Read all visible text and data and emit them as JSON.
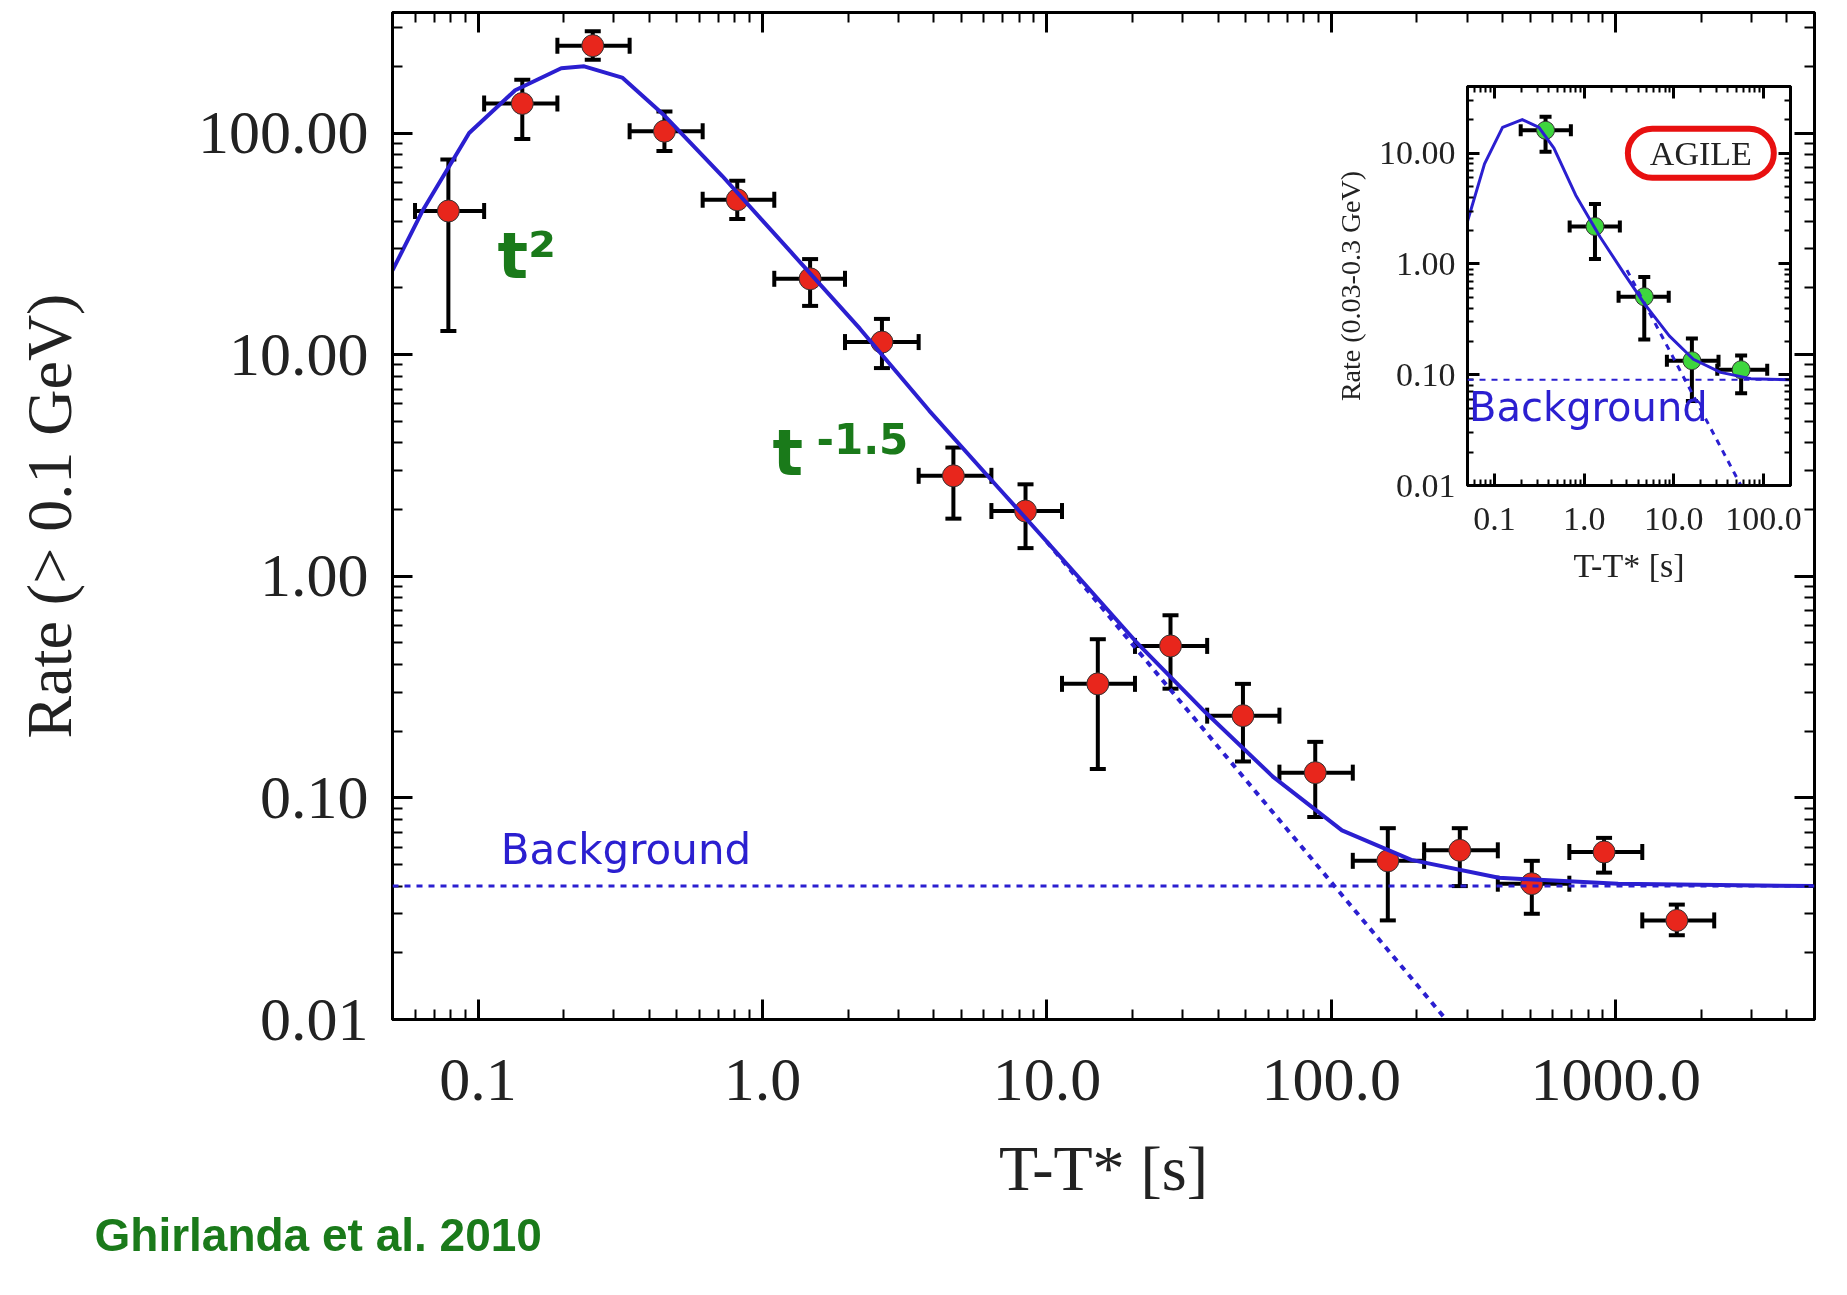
{
  "chart_data": [
    {
      "type": "scatter",
      "xlabel": "T-T* [s]",
      "ylabel": "Rate (> 0.1 GeV)",
      "log": "xy",
      "grid": false,
      "marker": "circle",
      "xlim": [
        0.05,
        5000
      ],
      "ylim": [
        0.01,
        350
      ],
      "xticks": [
        0.1,
        {
          "value": 1,
          "label": "1.0"
        },
        {
          "value": 10,
          "label": "10.0"
        },
        {
          "value": 100,
          "label": "100.0"
        },
        {
          "value": 1000,
          "label": "1000.0"
        }
      ],
      "yticks": [
        0.01,
        {
          "value": 0.1,
          "label": "0.10"
        },
        {
          "value": 1,
          "label": "1.00"
        },
        {
          "value": 10,
          "label": "10.00"
        },
        {
          "value": 100,
          "label": "100.00"
        }
      ],
      "series": [
        {
          "color": "#e8261c",
          "x": [
            0.0786,
            0.143,
            0.253,
            0.452,
            0.815,
            1.47,
            2.63,
            4.69,
            8.41,
            15.1,
            27.2,
            48.9,
            87.8,
            158,
            283,
            507,
            910,
            1640
          ],
          "values": [
            44.5,
            136,
            248,
            102,
            50,
            22,
            11.4,
            2.84,
            1.97,
            0.327,
            0.485,
            0.235,
            0.13,
            0.052,
            0.058,
            0.041,
            0.057,
            0.028
          ],
          "errors": [
            [
              12.8,
              76
            ],
            [
              94,
              174
            ],
            [
              214,
              288
            ],
            [
              83,
              125
            ],
            [
              41,
              61
            ],
            [
              16.6,
              27
            ],
            [
              8.7,
              14.5
            ],
            [
              1.82,
              3.81
            ],
            [
              1.34,
              2.6
            ],
            [
              0.135,
              0.52
            ],
            [
              0.311,
              0.667
            ],
            [
              0.146,
              0.327
            ],
            [
              0.082,
              0.179
            ],
            [
              0.028,
              0.073
            ],
            [
              0.04,
              0.073
            ],
            [
              0.03,
              0.052
            ],
            [
              0.046,
              0.066
            ],
            [
              0.024,
              0.033
            ]
          ],
          "xerrors": [
            [
              0.06,
              0.105
            ],
            [
              0.105,
              0.19
            ],
            [
              0.19,
              0.341
            ],
            [
              0.341,
              0.616
            ],
            [
              0.616,
              1.1
            ],
            [
              1.1,
              1.95
            ],
            [
              1.95,
              3.54
            ],
            [
              3.54,
              6.38
            ],
            [
              6.38,
              11.3
            ],
            [
              11.3,
              20.4
            ],
            [
              20.4,
              36.6
            ],
            [
              36.6,
              65.7
            ],
            [
              65.7,
              119
            ],
            [
              119,
              212
            ],
            [
              212,
              385
            ],
            [
              385,
              687
            ],
            [
              687,
              1240
            ],
            [
              1240,
              2220
            ]
          ]
        },
        {
          "type": "line",
          "marker": "none",
          "color": "#2b1fd0",
          "line_style": "solid",
          "x": [
            0.05,
            0.064,
            0.093,
            0.135,
            0.196,
            0.236,
            0.321,
            0.452,
            0.722,
            1.26,
            2.2,
            3.86,
            6.75,
            11.8,
            20.5,
            36,
            62.6,
            109,
            191,
            388,
            1020,
            5000
          ],
          "values": [
            24,
            45,
            100,
            156,
            196,
            200,
            178,
            120,
            64,
            29,
            13.1,
            5.58,
            2.51,
            1.13,
            0.509,
            0.244,
            0.124,
            0.0713,
            0.0525,
            0.0436,
            0.041,
            0.04
          ]
        },
        {
          "type": "line",
          "marker": "none",
          "color": "#2b1fd0",
          "line_style": "dashed",
          "x": [
            10,
            253
          ],
          "values": [
            1.43,
            0.01
          ]
        }
      ],
      "ref_lines": [
        {
          "axis": "y",
          "value": 0.04,
          "label": "Background",
          "color": "#2b1fd0",
          "line_style": "dashed"
        }
      ],
      "annotations": [
        "t²",
        "t$^{-1.5}$",
        "Ghirlanda et al. 2010"
      ]
    },
    {
      "type": "scatter",
      "xlabel": "T-T* [s]",
      "ylabel": "Rate (0.03-0.3 GeV)",
      "log": "xy",
      "grid": false,
      "marker": "circle",
      "xlim": [
        0.05,
        200
      ],
      "ylim": [
        0.01,
        40
      ],
      "xticks": [
        0.1,
        {
          "value": 1,
          "label": "1.0"
        },
        {
          "value": 10,
          "label": "10.0"
        },
        {
          "value": 100,
          "label": "100.0"
        }
      ],
      "yticks": [
        0.01,
        {
          "value": 0.1,
          "label": "0.10"
        },
        {
          "value": 1,
          "label": "1.00"
        },
        {
          "value": 10,
          "label": "10.00"
        }
      ],
      "series": [
        {
          "color": "#3ed63e",
          "x": [
            0.371,
            1.32,
            4.68,
            15.9,
            56.3
          ],
          "values": [
            16.1,
            2.18,
            0.506,
            0.134,
            0.111
          ],
          "errors": [
            [
              10.3,
              21.3
            ],
            [
              1.11,
              3.48
            ],
            [
              0.208,
              0.763
            ],
            [
              0.058,
              0.212
            ],
            [
              0.068,
              0.149
            ]
          ],
          "xerrors": [
            [
              0.196,
              0.711
            ],
            [
              0.689,
              2.5
            ],
            [
              2.42,
              8.77
            ],
            [
              8.37,
              31.5
            ],
            [
              30.5,
              110
            ]
          ]
        },
        {
          "type": "line",
          "marker": "none",
          "color": "#2b1fd0",
          "line_style": "solid",
          "x": [
            0.05,
            0.0774,
            0.123,
            0.204,
            0.313,
            0.46,
            0.805,
            1.5,
            2.78,
            4.78,
            8.9,
            16.5,
            33.2,
            72.2,
            200
          ],
          "values": [
            2.43,
            8.0,
            17.1,
            20.1,
            17.1,
            11.1,
            4.18,
            1.76,
            0.823,
            0.43,
            0.224,
            0.138,
            0.105,
            0.0922,
            0.09
          ]
        },
        {
          "type": "line",
          "marker": "none",
          "color": "#2b1fd0",
          "line_style": "dashed",
          "x": [
            3,
            56
          ],
          "values": [
            0.88,
            0.01
          ]
        }
      ],
      "ref_lines": [
        {
          "axis": "y",
          "value": 0.09,
          "label": "Background",
          "color": "#2b1fd0",
          "line_style": "dashed"
        }
      ],
      "annotations": [
        "AGILE"
      ]
    }
  ]
}
